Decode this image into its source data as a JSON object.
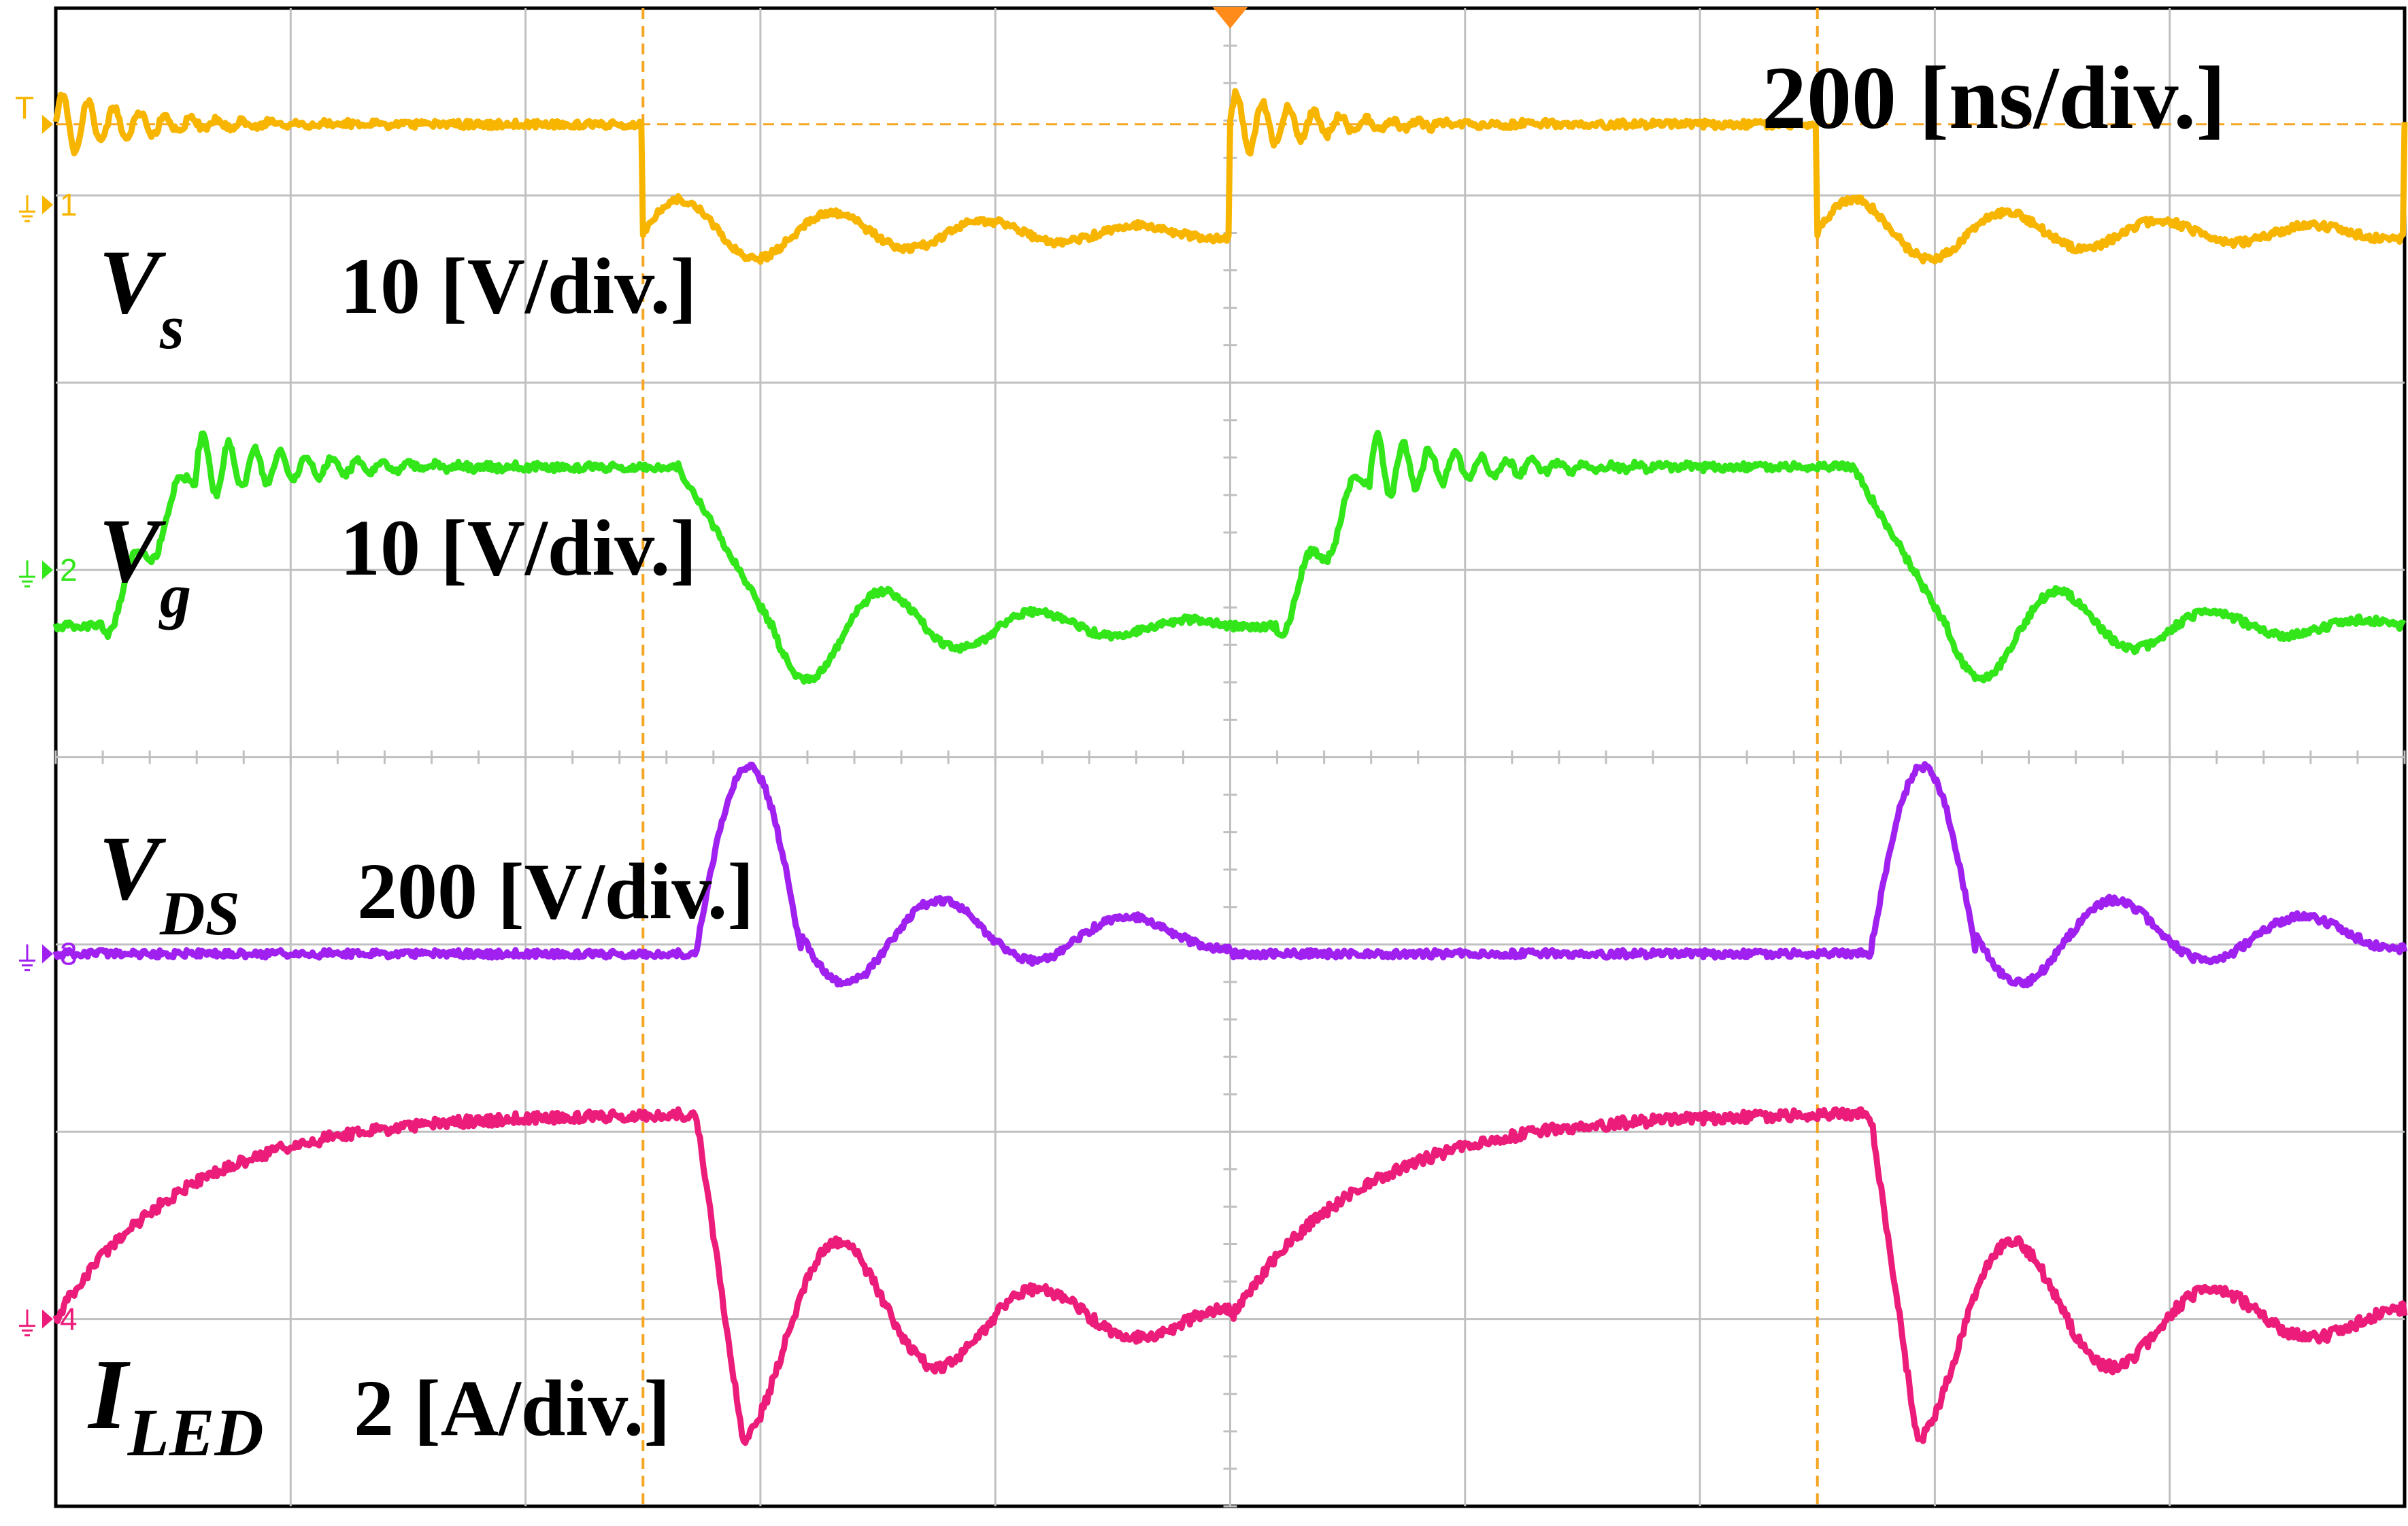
{
  "chart_data": {
    "type": "line",
    "time_scale": "200 [ns/div.]",
    "x_unit": "ns",
    "xlim": [
      0,
      2000
    ],
    "divisions": {
      "x": 10,
      "y": 8
    },
    "cursor_times_ns": [
      500,
      1500
    ],
    "trigger_time_ns": 1000,
    "trigger_marker": "T",
    "colors": {
      "background": "#ffffff",
      "grid": "#c0c0c0",
      "cursor": "#f5a623",
      "ch1": "#f7b500",
      "ch2": "#33e61a",
      "ch3": "#a020f0",
      "ch4": "#ec1c7a"
    },
    "series": [
      {
        "id": "ch1",
        "channel_marker": "1",
        "symbol": "V",
        "subscript": "s",
        "scale": "10 [V/div.]",
        "ground_div": 1.05,
        "high_div": 0.62,
        "low_div": 1.2,
        "edges": [
          {
            "t": 0,
            "state": "high"
          },
          {
            "t": 500,
            "state": "low"
          },
          {
            "t": 1000,
            "state": "high"
          },
          {
            "t": 1500,
            "state": "low"
          }
        ]
      },
      {
        "id": "ch2",
        "channel_marker": "2",
        "symbol": "V",
        "subscript": "g",
        "scale": "10 [V/div.]",
        "ground_div": 3.0,
        "high_div": 2.45,
        "low_div": 3.3,
        "edges": [
          {
            "t": 0,
            "state": "rise"
          },
          {
            "t": 530,
            "state": "fall"
          },
          {
            "t": 1010,
            "state": "rise"
          },
          {
            "t": 1530,
            "state": "fall"
          }
        ]
      },
      {
        "id": "ch3",
        "channel_marker": "3",
        "symbol": "V",
        "subscript": "DS",
        "scale": "200 [V/div.]",
        "ground_div": 5.05,
        "high_div": 5.05,
        "low_div": 5.05,
        "edges": [
          {
            "t": 0,
            "state": "low"
          },
          {
            "t": 545,
            "state": "pulse"
          },
          {
            "t": 1045,
            "state": "low"
          },
          {
            "t": 1545,
            "state": "pulse"
          }
        ]
      },
      {
        "id": "ch4",
        "channel_marker": "4",
        "symbol": "I",
        "subscript": "LED",
        "scale": "2 [A/div.]",
        "ground_div": 7.0,
        "high_div": 5.9,
        "low_div": 7.0,
        "edges": [
          {
            "t": 0,
            "state": "rise"
          },
          {
            "t": 545,
            "state": "fall"
          },
          {
            "t": 1045,
            "state": "rise"
          },
          {
            "t": 1545,
            "state": "fall"
          }
        ]
      }
    ]
  }
}
